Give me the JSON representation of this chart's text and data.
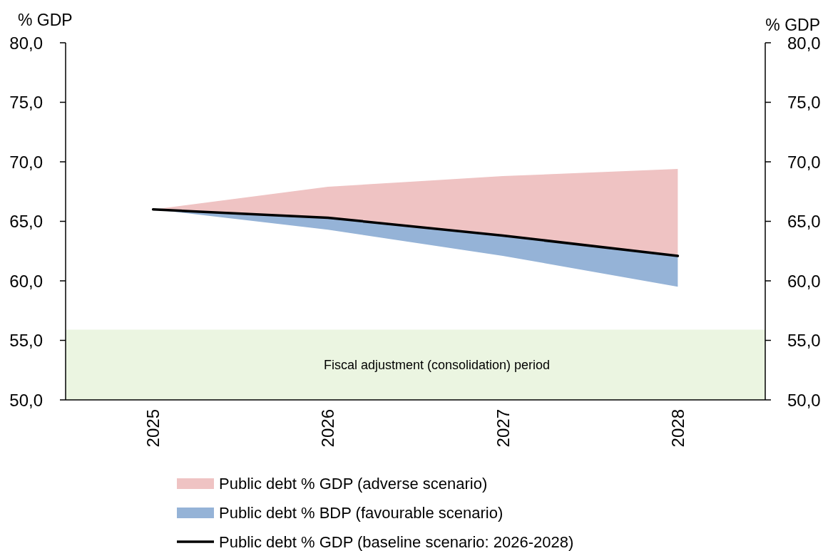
{
  "chart_data": {
    "type": "area",
    "ylabel": "% GDP",
    "y2label": "% GDP",
    "categories": [
      "2025",
      "2026",
      "2027",
      "2028"
    ],
    "series": [
      {
        "name": "Public debt % GDP (adverse scenario)",
        "color": "#efc3c3",
        "values": [
          66.0,
          67.9,
          68.8,
          69.4
        ]
      },
      {
        "name": "Public debt % BDP (favourable scenario)",
        "color": "#95b3d7",
        "values": [
          66.0,
          64.3,
          62.1,
          59.5
        ]
      },
      {
        "name": "Public debt % GDP (baseline scenario: 2026-2028)",
        "type": "line",
        "color": "#000000",
        "values": [
          66.0,
          65.3,
          63.8,
          62.1
        ]
      }
    ],
    "ylim": [
      50,
      80
    ],
    "yticks": [
      {
        "value": 50,
        "label": "50,0"
      },
      {
        "value": 55,
        "label": "55,0"
      },
      {
        "value": 60,
        "label": "60,0"
      },
      {
        "value": 65,
        "label": "65,0"
      },
      {
        "value": 70,
        "label": "70,0"
      },
      {
        "value": 75,
        "label": "75,0"
      },
      {
        "value": 80,
        "label": "80,0"
      }
    ],
    "y2lim": [
      50,
      80
    ],
    "y2ticks": [
      {
        "value": 50,
        "label": "50,0"
      },
      {
        "value": 55,
        "label": "55,0"
      },
      {
        "value": 60,
        "label": "60,0"
      },
      {
        "value": 65,
        "label": "65,0"
      },
      {
        "value": 70,
        "label": "70,0"
      },
      {
        "value": 75,
        "label": "75,0"
      },
      {
        "value": 80,
        "label": "80,0"
      }
    ],
    "bands": [
      {
        "axis": "y",
        "from": 50,
        "to": 55.9,
        "label": "Fiscal adjustment (consolidation) period",
        "color": "#ebf5e1"
      }
    ],
    "legend": "bottom",
    "line_style": "solid",
    "marker": "none"
  }
}
